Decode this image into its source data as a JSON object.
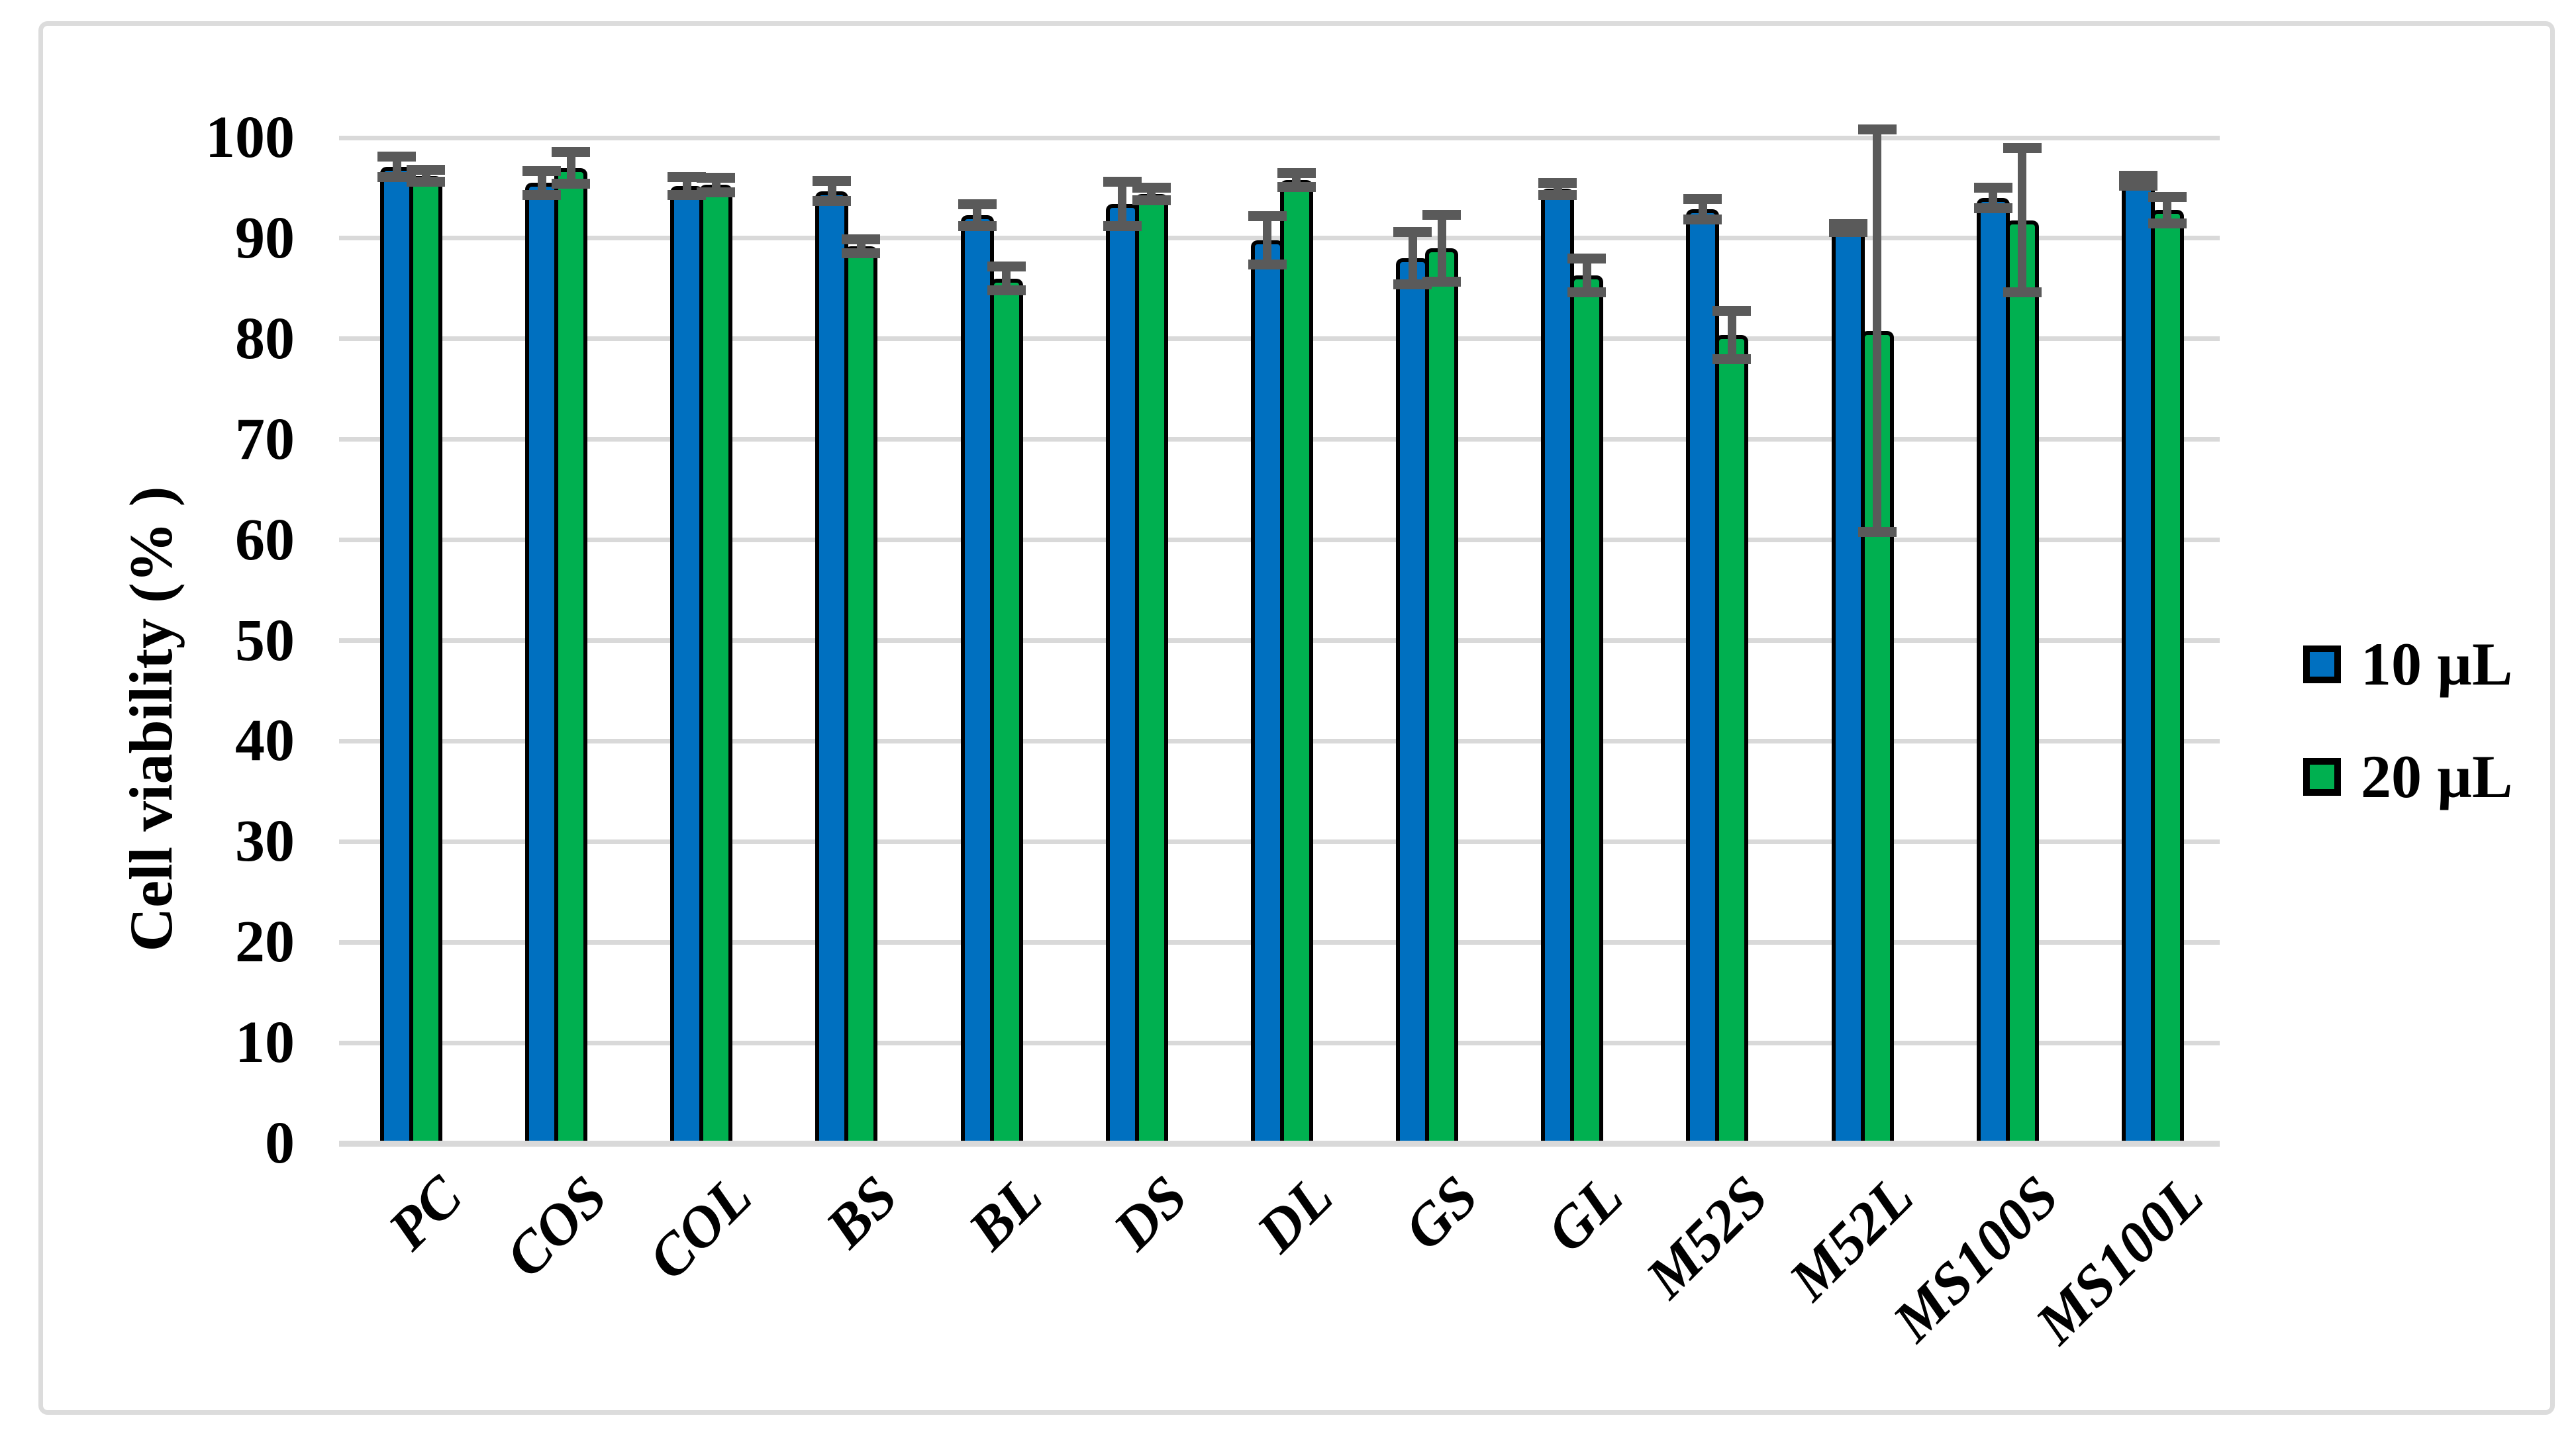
{
  "chart_data": {
    "type": "bar",
    "title": "",
    "xlabel": "",
    "ylabel": "Cell viability (% )",
    "ylim": [
      0,
      100
    ],
    "yticks": [
      0,
      10,
      20,
      30,
      40,
      50,
      60,
      70,
      80,
      90,
      100
    ],
    "grid": "horizontal",
    "legend_position": "right",
    "categories": [
      "PC",
      "COS",
      "COL",
      "BS",
      "BL",
      "DS",
      "DL",
      "GS",
      "GL",
      "M52S",
      "M52L",
      "MS100S",
      "MS100L"
    ],
    "series": [
      {
        "name": "10 µL",
        "color": "#0070C0",
        "values": [
          97.1,
          95.5,
          95.2,
          94.7,
          92.3,
          93.4,
          89.8,
          88.0,
          94.9,
          92.9,
          91.0,
          94.0,
          95.7
        ],
        "errors": [
          1.0,
          1.2,
          0.9,
          1.0,
          1.1,
          2.2,
          2.4,
          2.6,
          0.6,
          1.0,
          0.4,
          1.0,
          0.5
        ]
      },
      {
        "name": "20 µL",
        "color": "#00B050",
        "values": [
          96.2,
          97.0,
          95.3,
          89.2,
          86.0,
          94.4,
          95.8,
          89.0,
          86.3,
          80.4,
          80.8,
          91.8,
          92.8
        ],
        "errors": [
          0.6,
          1.6,
          0.7,
          0.7,
          1.2,
          0.6,
          0.7,
          3.3,
          1.7,
          2.4,
          20.0,
          7.2,
          1.3
        ]
      }
    ],
    "error_bar_color": "#5a5a5a",
    "gridline_color": "#d9d9d9",
    "bar_outline_color": "#000000",
    "background_color": "#ffffff"
  }
}
